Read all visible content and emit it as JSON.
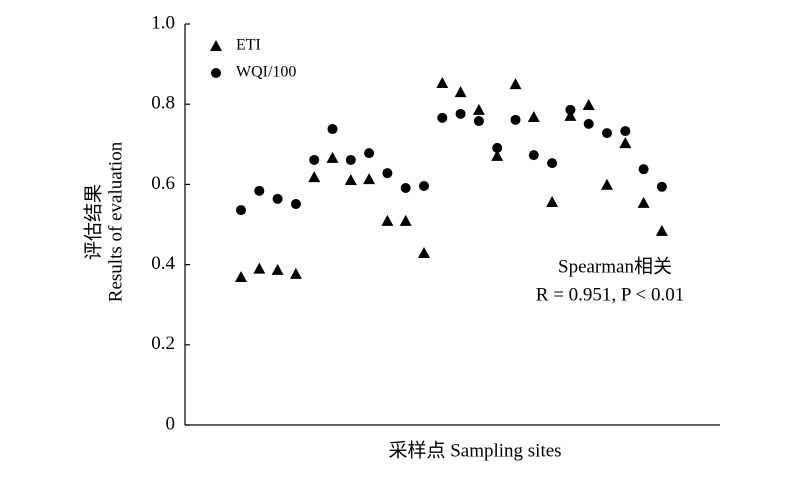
{
  "chart_data": {
    "type": "scatter",
    "x_label": "采样点 Sampling sites",
    "y_label": [
      "评估结果",
      "Results of evaluation"
    ],
    "annotation": [
      "Spearman相关",
      "R = 0.951, P < 0.01"
    ],
    "categories": [
      null,
      null,
      null,
      null,
      null,
      null,
      null,
      null,
      null,
      null,
      null,
      null,
      null,
      null,
      null,
      null,
      null,
      null,
      null,
      null,
      null,
      null,
      null,
      null
    ],
    "series": [
      {
        "name": "ETI",
        "marker": "triangle",
        "color": "#000000",
        "values": [
          0.369,
          0.39,
          0.387,
          0.377,
          0.618,
          0.666,
          0.611,
          0.613,
          0.509,
          0.509,
          0.429,
          0.853,
          0.83,
          0.786,
          0.671,
          0.85,
          0.768,
          0.556,
          0.771,
          0.798,
          0.599,
          0.703,
          0.554,
          0.484
        ]
      },
      {
        "name": "WQI/100",
        "marker": "circle",
        "color": "#000000",
        "values": [
          0.536,
          0.584,
          0.564,
          0.551,
          0.661,
          0.738,
          0.661,
          0.678,
          0.628,
          0.591,
          0.596,
          0.766,
          0.776,
          0.758,
          0.691,
          0.761,
          0.673,
          0.653,
          0.786,
          0.751,
          0.728,
          0.733,
          0.638,
          0.594
        ]
      }
    ],
    "ylim": [
      0,
      1
    ],
    "yticks": [
      0,
      0.2,
      0.4,
      0.6,
      0.8,
      {
        "value": 1,
        "label": "1.0"
      }
    ],
    "legend": "top-left"
  }
}
